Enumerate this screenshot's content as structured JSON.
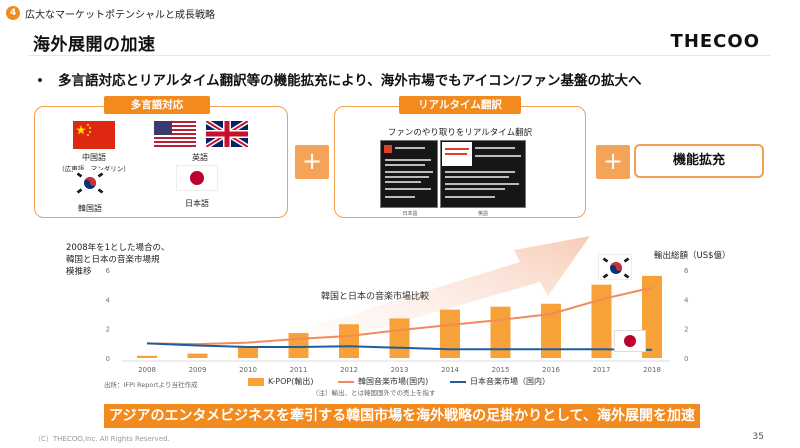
{
  "header": {
    "section_number": "4",
    "section_title": "広大なマーケットポテンシャルと成長戦略",
    "page_title": "海外展開の加速",
    "logo": "THECOO"
  },
  "bullet": "多言語対応とリアルタイム翻訳等の機能拡充により、海外市場でもアイコン/ファン基盤の拡大へ",
  "multilang": {
    "label": "多言語対応",
    "languages": {
      "chinese": "中国語",
      "chinese_sub": "（広東語、マンダリン）",
      "english": "英語",
      "korean": "韓国語",
      "japanese": "日本語"
    }
  },
  "translation": {
    "label": "リアルタイム翻訳",
    "caption": "ファンのやり取りをリアルタイム翻訳",
    "shot_left": "日本語",
    "shot_right": "英語"
  },
  "plus_symbol": "+",
  "feature": "機能拡充",
  "chart_note": {
    "line1": "2008年を1とした場合の、",
    "line2": "韓国と日本の音楽市場規",
    "line3": "模推移",
    "right_axis_title": "輸出総額（US$億）",
    "source": "出所：IFPI Reportより当社作成",
    "footnote": "（注）輸出、とは韓国国外での売上を指す"
  },
  "chart_data": {
    "type": "bar",
    "title": "韓国と日本の音楽市場比較",
    "categories": [
      "2008",
      "2009",
      "2010",
      "2011",
      "2012",
      "2013",
      "2014",
      "2015",
      "2016",
      "2017",
      "2018"
    ],
    "left_ticks": [
      "0",
      "2",
      "4",
      "6"
    ],
    "right_ticks": [
      "0",
      "2",
      "4",
      "6"
    ],
    "ylim_left": [
      0,
      6
    ],
    "ylim_right": [
      0,
      6
    ],
    "series": [
      {
        "name": "K-POP(輸出)",
        "kind": "bar",
        "axis": "right",
        "color": "#f7a138",
        "values": [
          0.15,
          0.3,
          0.8,
          1.7,
          2.3,
          2.7,
          3.3,
          3.5,
          3.7,
          5.0,
          5.6
        ]
      },
      {
        "name": "韓国音楽市場(国内)",
        "kind": "line",
        "axis": "left",
        "color": "#f28a5a",
        "values": [
          1.0,
          0.95,
          1.05,
          1.3,
          1.5,
          1.9,
          2.25,
          2.6,
          3.0,
          4.0,
          4.8
        ]
      },
      {
        "name": "日本音楽市場（国内）",
        "kind": "line",
        "axis": "left",
        "color": "#1f5e9e",
        "values": [
          1.0,
          0.85,
          0.75,
          0.75,
          0.8,
          0.7,
          0.6,
          0.6,
          0.6,
          0.6,
          0.55
        ]
      }
    ],
    "grid": false,
    "legend": "bottom"
  },
  "banner": "アジアのエンタメビジネスを牽引する韓国市場を海外戦略の足掛かりとして、海外展開を加速",
  "footer": {
    "copyright": "（C）THECOO,Inc. All Rights Reserved.",
    "page": "35"
  },
  "colors": {
    "accent": "#f28a1e",
    "panel_border": "#f0a050",
    "kpop_bar": "#f7a138",
    "korea_line": "#f28a5a",
    "japan_line": "#1f5e9e"
  }
}
